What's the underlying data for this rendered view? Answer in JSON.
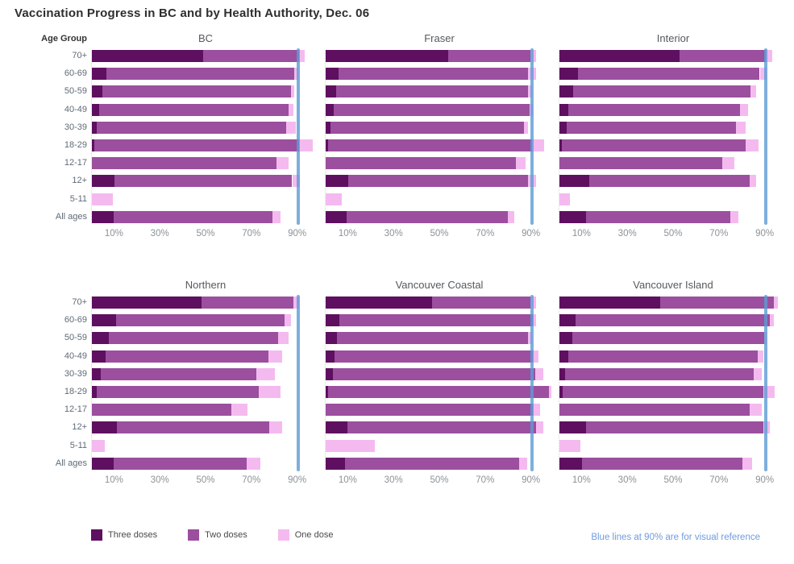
{
  "title": "Vaccination Progress in BC and by Health Authority, Dec. 06",
  "y_axis_title": "Age Group",
  "footnote": {
    "text": "Blue lines at 90% are for visual reference",
    "color": "#6F9BE0"
  },
  "legend": [
    {
      "label": "Three doses",
      "color": "#5E0F60"
    },
    {
      "label": "Two doses",
      "color": "#9B4F9E"
    },
    {
      "label": "One dose",
      "color": "#F4BAEF"
    }
  ],
  "reference_line": {
    "value": 90,
    "color": "#5C9BD5"
  },
  "chart_data": {
    "type": "bar",
    "orientation": "horizontal",
    "stacked": true,
    "unit": "percent of population",
    "xlim": [
      0,
      100
    ],
    "x_ticks": [
      10,
      30,
      50,
      70,
      90
    ],
    "x_tick_labels": [
      "10%",
      "30%",
      "50%",
      "70%",
      "90%"
    ],
    "grid": false,
    "legend_position": "bottom",
    "series_names": [
      "Three doses",
      "Two doses",
      "One dose"
    ],
    "categories": [
      "70+",
      "60-69",
      "50-59",
      "40-49",
      "30-39",
      "18-29",
      "12-17",
      "12+",
      "5-11",
      "All ages"
    ],
    "panels": [
      {
        "name": "BC",
        "values": [
          [
            48.5,
            42.0,
            2.5
          ],
          [
            6.5,
            82.0,
            1.5
          ],
          [
            4.5,
            82.5,
            1.5
          ],
          [
            3.0,
            83.0,
            2.0
          ],
          [
            2.0,
            83.0,
            4.0
          ],
          [
            1.0,
            89.5,
            6.0
          ],
          [
            0,
            80.5,
            5.5
          ],
          [
            10.0,
            77.5,
            3.5
          ],
          [
            0,
            0,
            9.0
          ],
          [
            9.5,
            69.5,
            3.5
          ]
        ]
      },
      {
        "name": "Fraser",
        "values": [
          [
            53.5,
            36.0,
            2.5
          ],
          [
            5.5,
            83.0,
            3.5
          ],
          [
            4.5,
            84.0,
            1.5
          ],
          [
            3.5,
            85.5,
            1.5
          ],
          [
            2.0,
            84.5,
            2.0
          ],
          [
            1.0,
            89.0,
            5.5
          ],
          [
            0,
            83.0,
            4.5
          ],
          [
            10.0,
            78.5,
            3.5
          ],
          [
            0,
            0,
            7.0
          ],
          [
            9.0,
            70.5,
            3.0
          ]
        ]
      },
      {
        "name": "Interior",
        "values": [
          [
            52.5,
            37.5,
            3.0
          ],
          [
            8.0,
            79.5,
            3.0
          ],
          [
            6.0,
            77.5,
            2.5
          ],
          [
            4.0,
            75.0,
            3.5
          ],
          [
            3.0,
            74.0,
            4.5
          ],
          [
            1.0,
            80.5,
            5.5
          ],
          [
            0,
            71.0,
            5.5
          ],
          [
            13.0,
            70.0,
            3.0
          ],
          [
            0,
            0,
            4.5
          ],
          [
            11.5,
            63.0,
            3.5
          ]
        ]
      },
      {
        "name": "Northern",
        "values": [
          [
            48.0,
            40.0,
            2.5
          ],
          [
            10.5,
            73.5,
            3.0
          ],
          [
            7.5,
            74.0,
            4.5
          ],
          [
            6.0,
            71.0,
            6.0
          ],
          [
            4.0,
            68.0,
            8.0
          ],
          [
            2.0,
            71.0,
            9.5
          ],
          [
            0,
            61.0,
            7.0
          ],
          [
            11.0,
            66.5,
            5.5
          ],
          [
            0,
            0,
            5.5
          ],
          [
            9.5,
            58.0,
            6.0
          ]
        ]
      },
      {
        "name": "Vancouver Coastal",
        "values": [
          [
            46.5,
            43.0,
            2.5
          ],
          [
            6.0,
            84.5,
            1.5
          ],
          [
            5.0,
            83.5,
            1.5
          ],
          [
            4.0,
            86.5,
            2.5
          ],
          [
            3.0,
            88.5,
            3.5
          ],
          [
            1.0,
            96.5,
            1.0
          ],
          [
            0,
            90.5,
            3.0
          ],
          [
            9.5,
            82.5,
            3.0
          ],
          [
            0,
            0,
            21.5
          ],
          [
            8.5,
            76.0,
            3.5
          ]
        ]
      },
      {
        "name": "Vancouver Island",
        "values": [
          [
            44.0,
            49.5,
            2.0
          ],
          [
            7.0,
            85.0,
            1.5
          ],
          [
            5.5,
            84.0,
            1.0
          ],
          [
            4.0,
            82.5,
            2.5
          ],
          [
            2.5,
            82.5,
            3.5
          ],
          [
            1.5,
            87.5,
            5.0
          ],
          [
            0,
            83.0,
            5.5
          ],
          [
            11.5,
            77.5,
            3.0
          ],
          [
            0,
            0,
            9.0
          ],
          [
            10.0,
            70.0,
            4.0
          ]
        ]
      }
    ]
  }
}
